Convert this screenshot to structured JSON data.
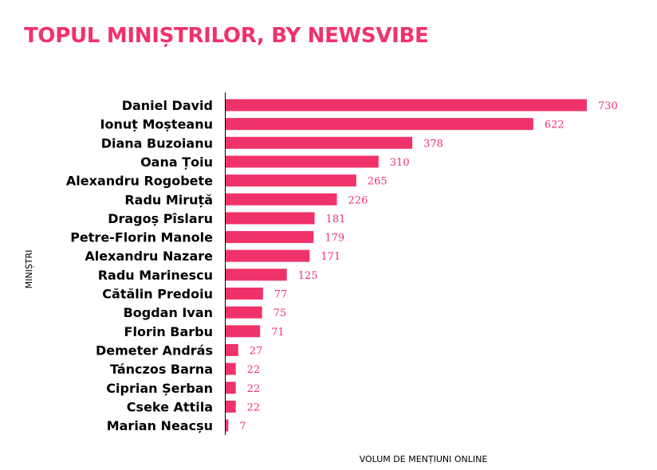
{
  "colors": {
    "accent": "#f0326a",
    "text": "#000000"
  },
  "chart_data": {
    "type": "bar",
    "orientation": "horizontal",
    "title": "TOPUL MINIȘTRILOR, BY NEWSVIBE",
    "xlabel": "VOLUM DE MENȚIUNI ONLINE",
    "ylabel": "MINIȘTRI",
    "xlim": [
      0,
      730
    ],
    "grid": false,
    "legend": "none",
    "categories": [
      "Daniel David",
      "Ionuț Moșteanu",
      "Diana Buzoianu",
      "Oana Țoiu",
      "Alexandru Rogobete",
      "Radu Miruță",
      "Dragoș Pîslaru",
      "Petre-Florin Manole",
      "Alexandru Nazare",
      "Radu Marinescu",
      "Cătălin Predoiu",
      "Bogdan Ivan",
      "Florin Barbu",
      "Demeter András",
      "Tánczos Barna",
      "Ciprian Șerban",
      "Cseke Attila",
      "Marian Neacșu"
    ],
    "values": [
      730,
      622,
      378,
      310,
      265,
      226,
      181,
      179,
      171,
      125,
      77,
      75,
      71,
      27,
      22,
      22,
      22,
      7
    ]
  }
}
